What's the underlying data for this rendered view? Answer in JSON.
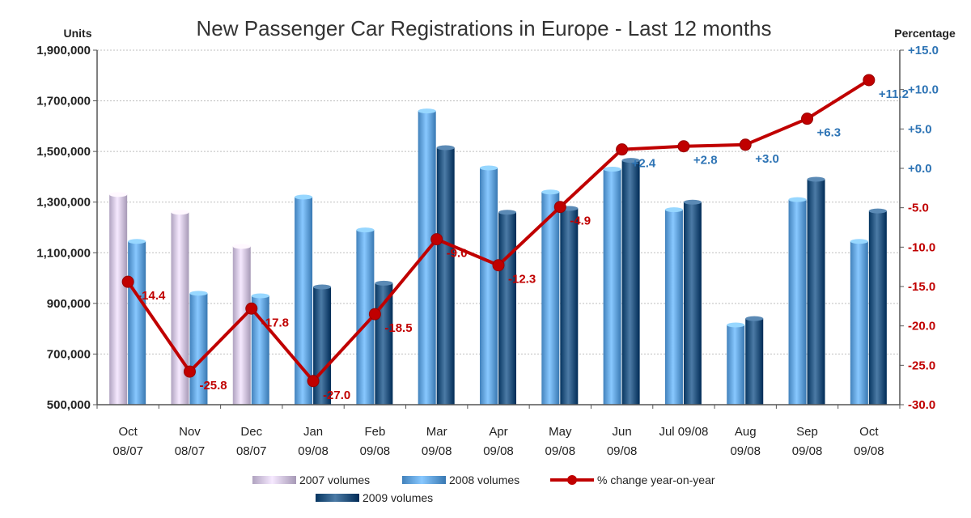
{
  "chart_data": {
    "type": "bar",
    "title": "New Passenger Car Registrations in Europe - Last 12 months",
    "ylabel_left": "Units",
    "ylabel_right": "Percentage",
    "categories": [
      [
        "Oct",
        "08/07"
      ],
      [
        "Nov",
        "08/07"
      ],
      [
        "Dec",
        "08/07"
      ],
      [
        "Jan",
        "09/08"
      ],
      [
        "Feb",
        "09/08"
      ],
      [
        "Mar",
        "09/08"
      ],
      [
        "Apr",
        "09/08"
      ],
      [
        "May",
        "09/08"
      ],
      [
        "Jun",
        "09/08"
      ],
      [
        "Jul 09/08",
        ""
      ],
      [
        "Aug",
        "09/08"
      ],
      [
        "Sep",
        "09/08"
      ],
      [
        "Oct",
        "09/08"
      ]
    ],
    "ylim_left": [
      500000,
      1900000
    ],
    "yticks_left": [
      "1,900,000",
      "1,700,000",
      "1,500,000",
      "1,300,000",
      "1,100,000",
      "900,000",
      "700,000",
      "500,000"
    ],
    "yticks_left_values": [
      1900000,
      1700000,
      1500000,
      1300000,
      1100000,
      900000,
      700000,
      500000
    ],
    "ylim_right": [
      -30,
      15
    ],
    "yticks_right": [
      "+15.0",
      "+10.0",
      "+5.0",
      "+0.0",
      "-5.0",
      "-10.0",
      "-15.0",
      "-20.0",
      "-25.0",
      "-30.0"
    ],
    "yticks_right_values": [
      15,
      10,
      5,
      0,
      -5,
      -10,
      -15,
      -20,
      -25,
      -30
    ],
    "grid": true,
    "legend_position": "bottom",
    "series": [
      {
        "name": "2007 volumes",
        "kind": "bar",
        "axis": "left",
        "color": "#c9bcd9",
        "values": [
          1330000,
          1260000,
          1125000,
          null,
          null,
          null,
          null,
          null,
          null,
          null,
          null,
          null,
          null
        ]
      },
      {
        "name": "2008 volumes",
        "kind": "bar",
        "axis": "left",
        "color": "#5b9bd5",
        "values": [
          1145000,
          940000,
          930000,
          1320000,
          1190000,
          1660000,
          1435000,
          1340000,
          1430000,
          1270000,
          815000,
          1310000,
          1145000
        ]
      },
      {
        "name": "2009 volumes",
        "kind": "bar",
        "axis": "left",
        "color": "#1f4e79",
        "values": [
          null,
          null,
          null,
          965000,
          980000,
          1515000,
          1260000,
          1275000,
          1465000,
          1300000,
          840000,
          1390000,
          1265000
        ]
      },
      {
        "name": "% change year-on-year",
        "kind": "line",
        "axis": "right",
        "color": "#c00000",
        "values": [
          -14.4,
          -25.8,
          -17.8,
          -27.0,
          -18.5,
          -9.0,
          -12.3,
          -4.9,
          2.4,
          2.8,
          3.0,
          6.3,
          11.2
        ],
        "labels": [
          "-14.4",
          "-25.8",
          "-17.8",
          "-27.0",
          "-18.5",
          "-9.0",
          "-12.3",
          "-4.9",
          "+2.4",
          "+2.8",
          "+3.0",
          "+6.3",
          "+11.2"
        ]
      }
    ],
    "colors": {
      "left_axis_text": "#222222",
      "right_positive": "#2e74b5",
      "right_negative": "#c00000",
      "grid": "#bfbfbf"
    }
  }
}
